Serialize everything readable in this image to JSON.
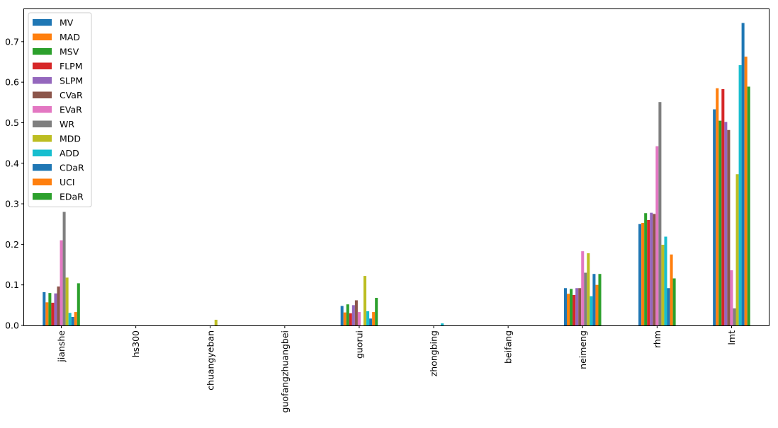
{
  "chart_data": {
    "type": "bar",
    "categories": [
      "jianshe",
      "hs300",
      "chuangyeban",
      "guofangzhuangbei",
      "guorui",
      "zhongbing",
      "beifang",
      "neimeng",
      "rhm",
      "lmt"
    ],
    "ylim": [
      0,
      0.78
    ],
    "yticks": [
      "0.0",
      "0.1",
      "0.2",
      "0.3",
      "0.4",
      "0.5",
      "0.6",
      "0.7"
    ],
    "grid": false,
    "legend_position": "upper-left",
    "series": [
      {
        "name": "MV",
        "color": "#1f77b4",
        "values": [
          0.082,
          0,
          0,
          0,
          0.048,
          0,
          0,
          0.092,
          0.25,
          0.533
        ]
      },
      {
        "name": "MAD",
        "color": "#ff7f0e",
        "values": [
          0.057,
          0,
          0,
          0,
          0.032,
          0,
          0,
          0.078,
          0.253,
          0.585
        ]
      },
      {
        "name": "MSV",
        "color": "#2ca02c",
        "values": [
          0.08,
          0,
          0,
          0,
          0.052,
          0,
          0,
          0.09,
          0.277,
          0.505
        ]
      },
      {
        "name": "FLPM",
        "color": "#d62728",
        "values": [
          0.056,
          0,
          0,
          0,
          0.03,
          0,
          0,
          0.075,
          0.26,
          0.583
        ]
      },
      {
        "name": "SLPM",
        "color": "#9467bd",
        "values": [
          0.079,
          0,
          0,
          0,
          0.05,
          0,
          0,
          0.092,
          0.278,
          0.502
        ]
      },
      {
        "name": "CVaR",
        "color": "#8c564b",
        "values": [
          0.096,
          0,
          0,
          0,
          0.062,
          0,
          0,
          0.092,
          0.275,
          0.482
        ]
      },
      {
        "name": "EVaR",
        "color": "#e377c2",
        "values": [
          0.21,
          0,
          0,
          0,
          0.033,
          0,
          0,
          0.183,
          0.442,
          0.136
        ]
      },
      {
        "name": "WR",
        "color": "#7f7f7f",
        "values": [
          0.28,
          0,
          0,
          0,
          0,
          0,
          0,
          0.13,
          0.551,
          0.042
        ]
      },
      {
        "name": "MDD",
        "color": "#bcbd22",
        "values": [
          0.118,
          0,
          0.014,
          0,
          0.122,
          0,
          0,
          0.178,
          0.199,
          0.373
        ]
      },
      {
        "name": "ADD",
        "color": "#17becf",
        "values": [
          0.031,
          0,
          0,
          0,
          0.035,
          0.005,
          0,
          0.072,
          0.219,
          0.642
        ]
      },
      {
        "name": "CDaR",
        "color": "#1f77b4",
        "values": [
          0.021,
          0,
          0,
          0,
          0.017,
          0,
          0,
          0.127,
          0.092,
          0.746
        ]
      },
      {
        "name": "UCI",
        "color": "#ff7f0e",
        "values": [
          0.033,
          0,
          0,
          0,
          0.033,
          0,
          0,
          0.1,
          0.175,
          0.663
        ]
      },
      {
        "name": "EDaR",
        "color": "#2ca02c",
        "values": [
          0.104,
          0,
          0,
          0,
          0.068,
          0,
          0,
          0.127,
          0.116,
          0.589
        ]
      }
    ]
  }
}
